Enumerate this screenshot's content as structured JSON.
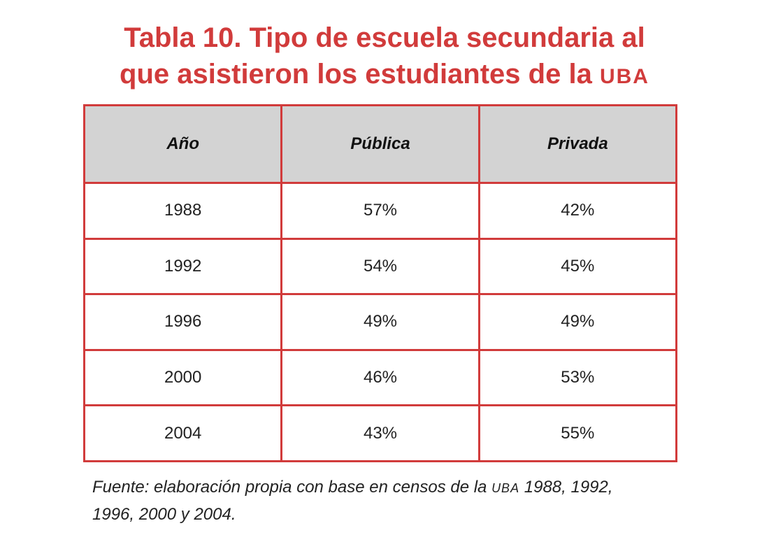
{
  "title": {
    "line1": "Tabla 10. Tipo de escuela secundaria al",
    "line2": "que asistieron los estudiantes de la",
    "abbr": "UBA"
  },
  "chart_data": {
    "type": "table",
    "columns": [
      "Año",
      "Pública",
      "Privada"
    ],
    "rows": [
      [
        "1988",
        "57%",
        "42%"
      ],
      [
        "1992",
        "54%",
        "45%"
      ],
      [
        "1996",
        "49%",
        "49%"
      ],
      [
        "2000",
        "46%",
        "53%"
      ],
      [
        "2004",
        "43%",
        "55%"
      ]
    ]
  },
  "source": {
    "before": "Fuente: elaboración propia con base en censos de la",
    "abbr": "UBA",
    "after": "1988, 1992,",
    "line2": "1996, 2000 y 2004."
  },
  "colors": {
    "accent": "#d13b3b",
    "header_bg": "#d3d3d3"
  }
}
